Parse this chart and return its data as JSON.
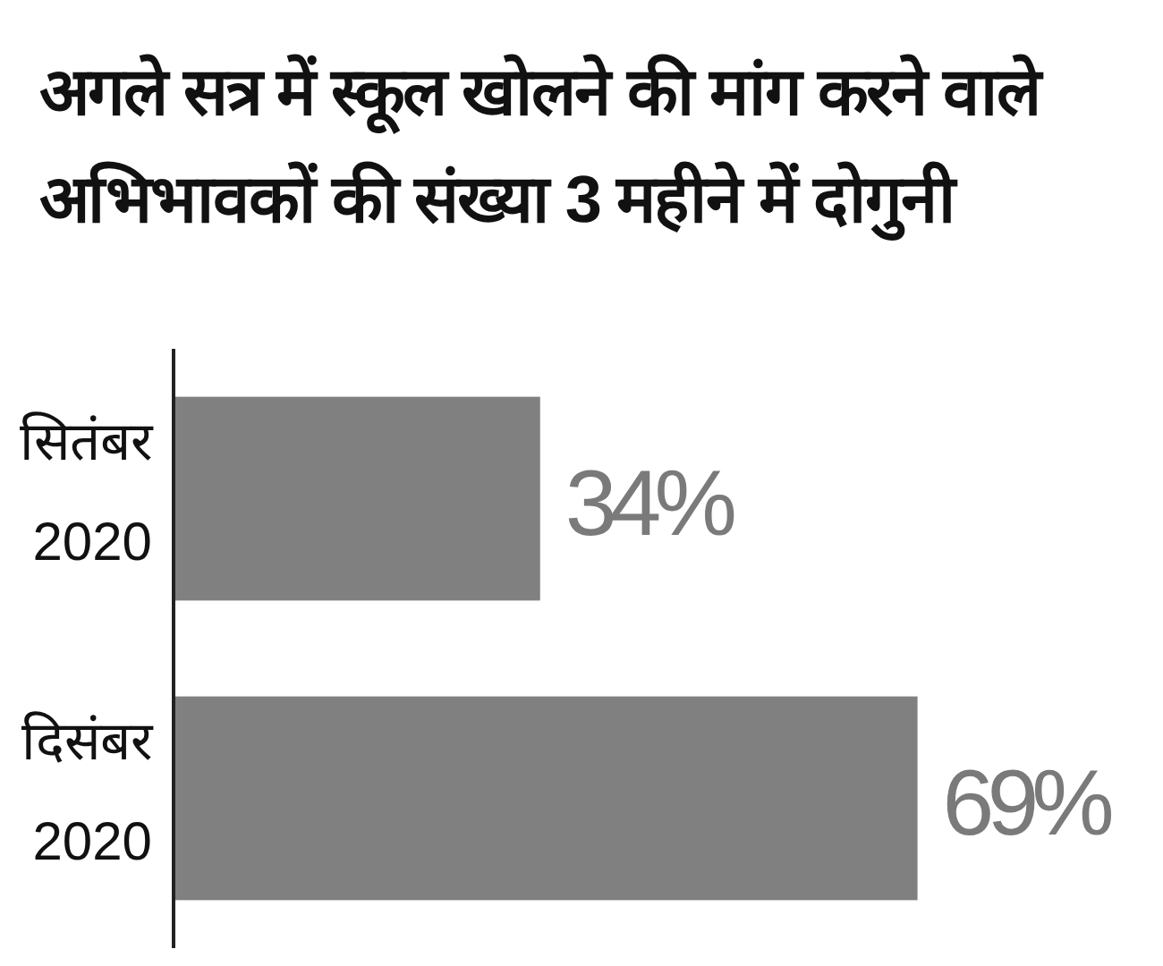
{
  "chart_data": {
    "type": "bar",
    "orientation": "horizontal",
    "title": "अगले सत्र में स्कूल खोलने की मांग करने वाले अभिभावकों की संख्या 3 महीने में दोगुनी",
    "categories": [
      "सितंबर 2020",
      "दिसंबर 2020"
    ],
    "values": [
      34,
      69
    ],
    "value_labels": [
      "34%",
      "69%"
    ],
    "color": "#808080"
  }
}
